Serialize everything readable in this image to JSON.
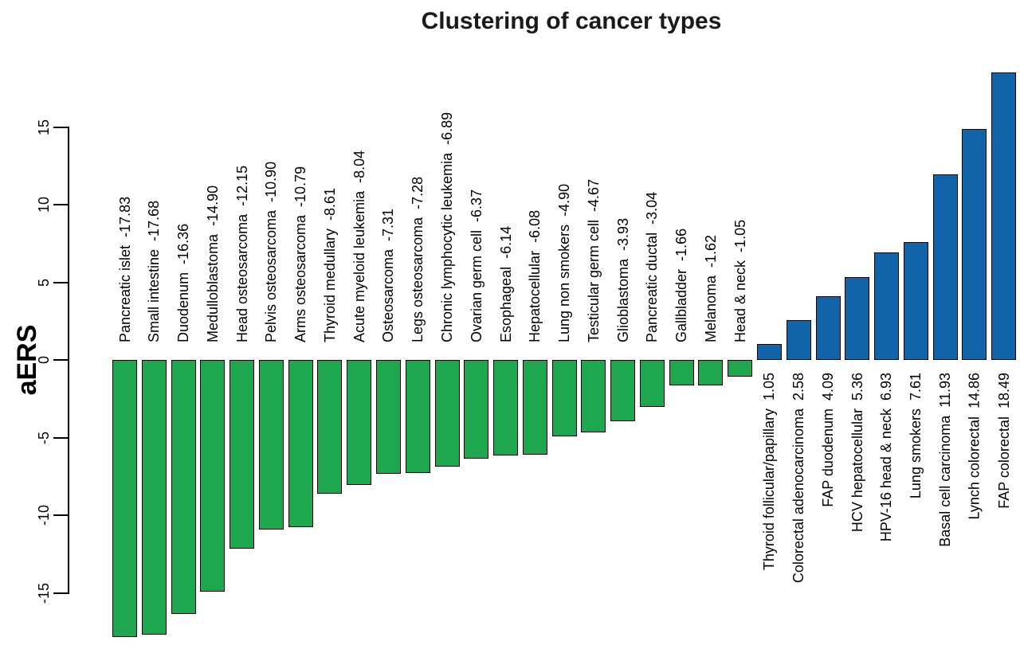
{
  "chart_data": {
    "type": "bar",
    "title": "Clustering of cancer types",
    "xlabel": "",
    "ylabel": "aERS",
    "ylim": [
      -18.5,
      19
    ],
    "yticks": [
      "15",
      "10",
      "5",
      "0",
      "-5",
      "-10",
      "-15"
    ],
    "ytick_values": [
      15,
      10,
      5,
      0,
      -5,
      -10,
      -15
    ],
    "grid": false,
    "legend": false,
    "bar_label_rotation": 90,
    "colors": {
      "negative_fill": "#1FA750",
      "positive_fill": "#1164A8",
      "bar_border": "#000000",
      "text": "#000000"
    },
    "bars": [
      {
        "name": "Pancreatic islet",
        "value": -17.83,
        "value_label": "-17.83",
        "group": "negative"
      },
      {
        "name": "Small intestine",
        "value": -17.68,
        "value_label": "-17.68",
        "group": "negative"
      },
      {
        "name": "Duodenum",
        "value": -16.36,
        "value_label": "-16.36",
        "group": "negative"
      },
      {
        "name": "Medulloblastoma",
        "value": -14.9,
        "value_label": "-14.90",
        "group": "negative"
      },
      {
        "name": "Head osteosarcoma",
        "value": -12.15,
        "value_label": "-12.15",
        "group": "negative"
      },
      {
        "name": "Pelvis osteosarcoma",
        "value": -10.9,
        "value_label": "-10.90",
        "group": "negative"
      },
      {
        "name": "Arms osteosarcoma",
        "value": -10.79,
        "value_label": "-10.79",
        "group": "negative"
      },
      {
        "name": "Thyroid medullary",
        "value": -8.61,
        "value_label": "-8.61",
        "group": "negative"
      },
      {
        "name": "Acute myeloid leukemia",
        "value": -8.04,
        "value_label": "-8.04",
        "group": "negative"
      },
      {
        "name": "Osteosarcoma",
        "value": -7.31,
        "value_label": "-7.31",
        "group": "negative"
      },
      {
        "name": "Legs osteosarcoma",
        "value": -7.28,
        "value_label": "-7.28",
        "group": "negative"
      },
      {
        "name": "Chronic lymphocytic leukemia",
        "value": -6.89,
        "value_label": "-6.89",
        "group": "negative"
      },
      {
        "name": "Ovarian germ cell",
        "value": -6.37,
        "value_label": "-6.37",
        "group": "negative"
      },
      {
        "name": "Esophageal",
        "value": -6.14,
        "value_label": "-6.14",
        "group": "negative"
      },
      {
        "name": "Hepatocellular",
        "value": -6.08,
        "value_label": "-6.08",
        "group": "negative"
      },
      {
        "name": "Lung non smokers",
        "value": -4.9,
        "value_label": "-4.90",
        "group": "negative"
      },
      {
        "name": "Testicular germ cell",
        "value": -4.67,
        "value_label": "-4.67",
        "group": "negative"
      },
      {
        "name": "Glioblastoma",
        "value": -3.93,
        "value_label": "-3.93",
        "group": "negative"
      },
      {
        "name": "Pancreatic ductal",
        "value": -3.04,
        "value_label": "-3.04",
        "group": "negative"
      },
      {
        "name": "Gallbladder",
        "value": -1.66,
        "value_label": "-1.66",
        "group": "negative"
      },
      {
        "name": "Melanoma",
        "value": -1.62,
        "value_label": "-1.62",
        "group": "negative"
      },
      {
        "name": "Head & neck",
        "value": -1.05,
        "value_label": "-1.05",
        "group": "negative"
      },
      {
        "name": "Thyroid follicular/papillary",
        "value": 1.05,
        "value_label": "1.05",
        "group": "positive"
      },
      {
        "name": "Colorectal adenocarcinoma",
        "value": 2.58,
        "value_label": "2.58",
        "group": "positive"
      },
      {
        "name": "FAP duodenum",
        "value": 4.09,
        "value_label": "4.09",
        "group": "positive"
      },
      {
        "name": "HCV hepatocellular",
        "value": 5.36,
        "value_label": "5.36",
        "group": "positive"
      },
      {
        "name": "HPV-16 head & neck",
        "value": 6.93,
        "value_label": "6.93",
        "group": "positive"
      },
      {
        "name": "Lung smokers",
        "value": 7.61,
        "value_label": "7.61",
        "group": "positive"
      },
      {
        "name": "Basal cell carcinoma",
        "value": 11.93,
        "value_label": "11.93",
        "group": "positive"
      },
      {
        "name": "Lynch colorectal",
        "value": 14.86,
        "value_label": "14.86",
        "group": "positive"
      },
      {
        "name": "FAP colorectal",
        "value": 18.49,
        "value_label": "18.49",
        "group": "positive"
      }
    ]
  }
}
